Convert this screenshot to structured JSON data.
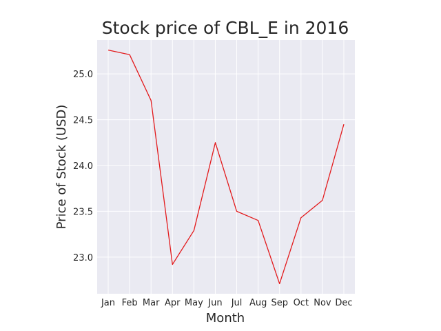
{
  "chart_data": {
    "type": "line",
    "title": "Stock price of CBL_E in 2016",
    "xlabel": "Month",
    "ylabel": "Price of Stock (USD)",
    "categories": [
      "Jan",
      "Feb",
      "Mar",
      "Apr",
      "May",
      "Jun",
      "Jul",
      "Aug",
      "Sep",
      "Oct",
      "Nov",
      "Dec"
    ],
    "values": [
      25.26,
      25.21,
      24.71,
      22.92,
      23.29,
      24.25,
      23.5,
      23.4,
      22.71,
      23.43,
      23.62,
      24.45
    ],
    "ylim": [
      22.6,
      25.37
    ],
    "yticks": [
      "23.0",
      "23.5",
      "24.0",
      "24.5",
      "25.0"
    ],
    "grid": true,
    "line_color": "#e31a1c",
    "background_color": "#eaeaf2",
    "grid_color": "#ffffff"
  }
}
